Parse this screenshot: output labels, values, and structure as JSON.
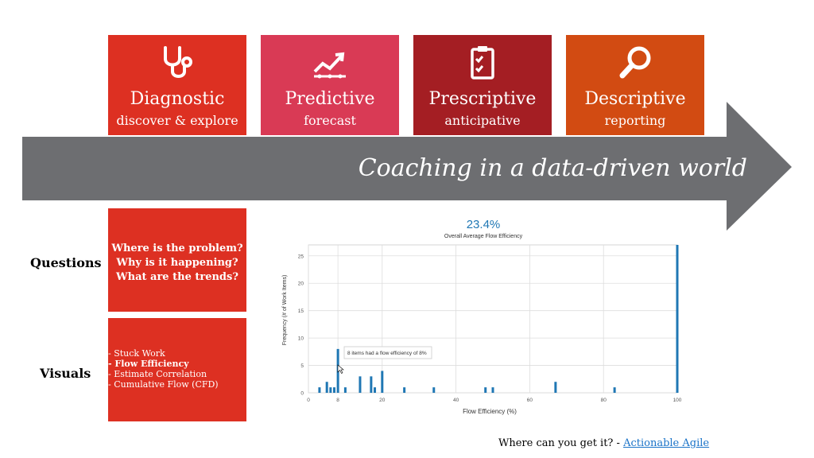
{
  "cards": [
    {
      "title": "Diagnostic",
      "subtitle": "discover & explore",
      "icon": "stethoscope-icon",
      "color": "#dd3022"
    },
    {
      "title": "Predictive",
      "subtitle": "forecast",
      "icon": "trend-chart-icon",
      "color": "#d93a55"
    },
    {
      "title": "Prescriptive",
      "subtitle": "anticipative",
      "icon": "clipboard-check-icon",
      "color": "#a41e23"
    },
    {
      "title": "Descriptive",
      "subtitle": "reporting",
      "icon": "magnifier-icon",
      "color": "#d24b12"
    }
  ],
  "arrow": {
    "text": "Coaching in a data-driven world",
    "color": "#6d6e71"
  },
  "questions": {
    "label": "Questions",
    "items": [
      "Where is the problem?",
      "Why is it happening?",
      "What are the trends?"
    ]
  },
  "visuals": {
    "label": "Visuals",
    "items": [
      "- Stuck Work",
      "- Flow Efficiency",
      "- Estimate Correlation",
      "- Cumulative Flow (CFD)"
    ],
    "bold_index": 1
  },
  "footer": {
    "text": "Where can you get it? - ",
    "link": "Actionable Agile"
  },
  "chart_data": {
    "type": "bar",
    "headline": "23.4%",
    "title": "Overall Average Flow Efficiency",
    "xlabel": "Flow Efficiency (%)",
    "ylabel": "Frequency (# of Work Items)",
    "xlim": [
      0,
      100
    ],
    "ylim": [
      0,
      27
    ],
    "xticks": [
      0,
      8,
      20,
      40,
      60,
      80,
      100
    ],
    "yticks": [
      0,
      5,
      10,
      15,
      20,
      25
    ],
    "bar_color": "#1f77b4",
    "x": [
      3,
      5,
      6,
      7,
      8,
      10,
      14,
      17,
      18,
      20,
      26,
      34,
      48,
      50,
      67,
      83,
      100
    ],
    "values": [
      1,
      2,
      1,
      1,
      8,
      1,
      3,
      3,
      1,
      4,
      1,
      1,
      1,
      1,
      2,
      1,
      27
    ],
    "tooltip": "8 items had a flow efficiency of 8%"
  }
}
